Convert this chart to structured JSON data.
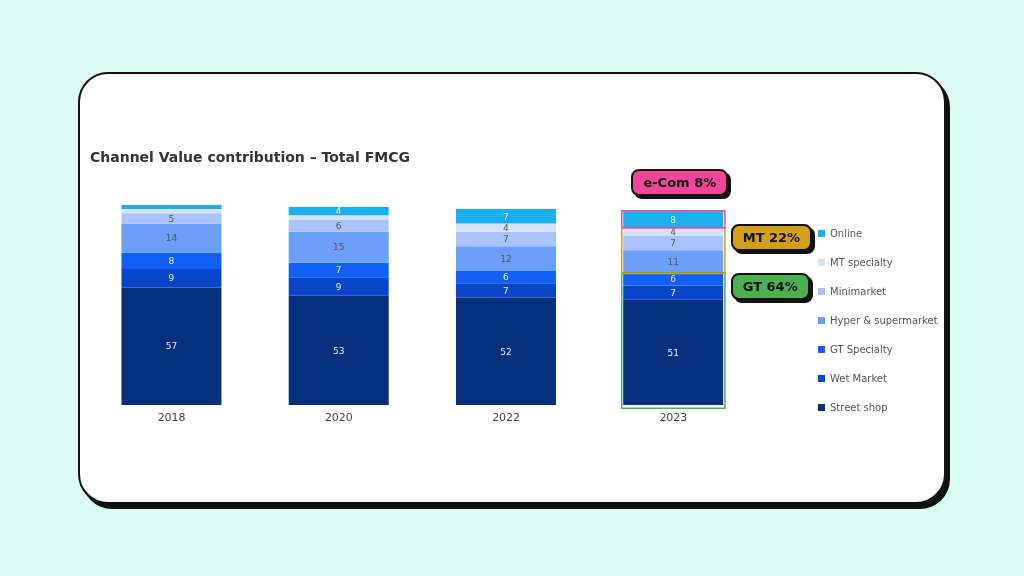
{
  "chart_data": {
    "type": "bar",
    "title": "Channel Value contribution – Total FMCG",
    "categories": [
      "2018",
      "2020",
      "2022",
      "2023"
    ],
    "stacked": true,
    "tick_labels": "x",
    "legend": "right",
    "series": [
      {
        "name": "Street shop",
        "color": "#062f7d",
        "values": [
          57,
          53,
          52,
          51
        ],
        "value_labels": [
          "57",
          "53",
          "52",
          "51"
        ]
      },
      {
        "name": "Wet Market",
        "color": "#0845c8",
        "values": [
          9,
          9,
          7,
          7
        ],
        "value_labels": [
          "9",
          "9",
          "7",
          "7"
        ]
      },
      {
        "name": "GT Specialty",
        "color": "#1060f5",
        "values": [
          8,
          7,
          6,
          6
        ],
        "value_labels": [
          "8",
          "7",
          "6",
          "6"
        ]
      },
      {
        "name": "Hyper & supermarket",
        "color": "#6a9ef8",
        "values": [
          14,
          15,
          12,
          11
        ],
        "value_labels": [
          "14",
          "15",
          "12",
          "11"
        ]
      },
      {
        "name": "Minimarket",
        "color": "#a9c3fb",
        "values": [
          5,
          6,
          7,
          7
        ],
        "value_labels": [
          "5",
          "6",
          "7",
          "7"
        ]
      },
      {
        "name": "MT specialty",
        "color": "#d6e2fb",
        "values": [
          2,
          2,
          4,
          4
        ],
        "value_labels": [
          null,
          null,
          "4",
          "4"
        ]
      },
      {
        "name": "Online",
        "color": "#1ab0f0",
        "values": [
          2,
          4,
          7,
          8
        ],
        "value_labels": [
          null,
          "4",
          "7",
          "8"
        ]
      }
    ],
    "annotations": [
      "GT 64%",
      "MT 22%",
      "e-Com 8%"
    ]
  }
}
